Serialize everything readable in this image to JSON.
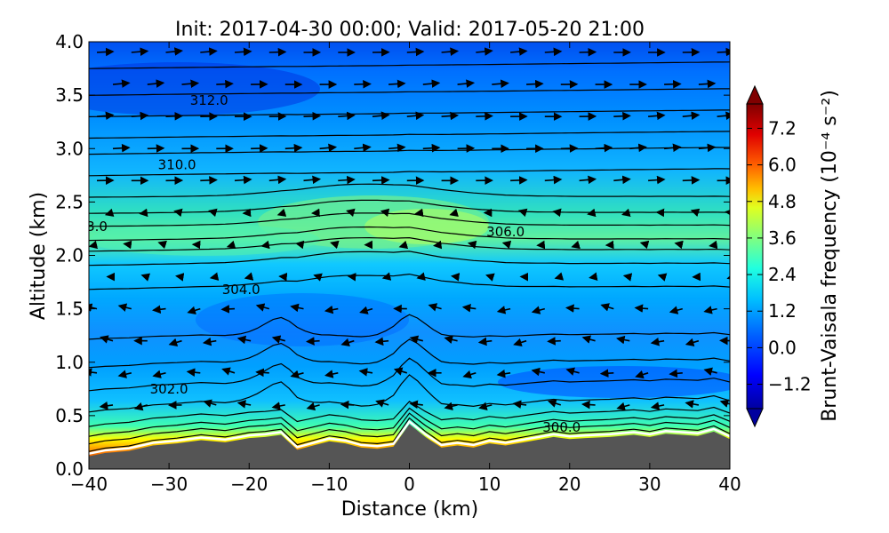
{
  "chart_data": {
    "type": "heatmap",
    "title": "Init: 2017-04-30 00:00; Valid: 2017-05-20 21:00",
    "xlabel": "Distance (km)",
    "ylabel": "Altitude (km)",
    "xlim": [
      -40,
      40
    ],
    "ylim": [
      0.0,
      4.0
    ],
    "x_ticks": [
      -40,
      -30,
      -20,
      -10,
      0,
      10,
      20,
      30,
      40
    ],
    "y_ticks": [
      "0.0",
      "0.5",
      "1.0",
      "1.5",
      "2.0",
      "2.5",
      "3.0",
      "3.5",
      "4.0"
    ],
    "colorbar": {
      "label": "Brunt-Vaisala frequency (10⁻⁴ s⁻²)",
      "range": [
        -2.0,
        8.0
      ],
      "ticks": [
        "−1.2",
        "0.0",
        "1.2",
        "2.4",
        "3.6",
        "4.8",
        "6.0",
        "7.2"
      ],
      "colors": [
        "#00007f",
        "#0000ff",
        "#007fff",
        "#00ffff",
        "#7fff7f",
        "#ffff00",
        "#ff7f00",
        "#ff0000",
        "#7f0000"
      ]
    },
    "contour_labels": [
      {
        "text": "312.0",
        "x": -25,
        "y": 3.45
      },
      {
        "text": "310.0",
        "x": -29,
        "y": 2.85
      },
      {
        "text": "306.0",
        "x": 12,
        "y": 2.22
      },
      {
        "text": "304.0",
        "x": -21,
        "y": 1.68
      },
      {
        "text": "302.0",
        "x": -30,
        "y": 0.75
      },
      {
        "text": "300.0",
        "x": 19,
        "y": 0.39
      },
      {
        "text": "3.0",
        "x": -39,
        "y": 2.27
      }
    ],
    "terrain": {
      "color": "#555555",
      "x": [
        -40,
        -38,
        -35,
        -32,
        -29,
        -26,
        -23,
        -20,
        -18,
        -16,
        -14,
        -12,
        -10,
        -8,
        -6,
        -4,
        -2,
        0,
        2,
        4,
        6,
        8,
        10,
        12,
        15,
        18,
        20,
        22,
        25,
        28,
        30,
        32,
        34,
        36,
        38,
        40
      ],
      "y": [
        0.12,
        0.15,
        0.17,
        0.22,
        0.24,
        0.27,
        0.25,
        0.29,
        0.3,
        0.32,
        0.18,
        0.22,
        0.26,
        0.24,
        0.2,
        0.19,
        0.21,
        0.42,
        0.3,
        0.2,
        0.22,
        0.2,
        0.24,
        0.22,
        0.26,
        0.3,
        0.28,
        0.29,
        0.3,
        0.32,
        0.3,
        0.33,
        0.32,
        0.31,
        0.35,
        0.28
      ]
    }
  }
}
